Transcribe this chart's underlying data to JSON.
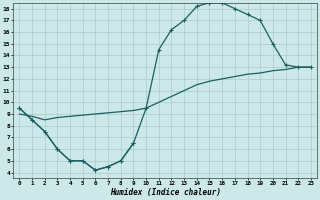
{
  "bg_color": "#cce8e8",
  "grid_color": "#aacccc",
  "line_color": "#1a6060",
  "xlabel": "Humidex (Indice chaleur)",
  "xlim": [
    -0.5,
    23.5
  ],
  "ylim": [
    3.5,
    18.5
  ],
  "xticks": [
    0,
    1,
    2,
    3,
    4,
    5,
    6,
    7,
    8,
    9,
    10,
    11,
    12,
    13,
    14,
    15,
    16,
    17,
    18,
    19,
    20,
    21,
    22,
    23
  ],
  "yticks": [
    4,
    5,
    6,
    7,
    8,
    9,
    10,
    11,
    12,
    13,
    14,
    15,
    16,
    17,
    18
  ],
  "curve_arch_x": [
    0,
    1,
    2,
    3,
    4,
    5,
    6,
    7,
    8,
    9,
    10,
    11,
    12,
    13,
    14,
    15,
    16,
    17,
    18,
    19,
    20,
    21,
    22,
    23
  ],
  "curve_arch_y": [
    9.5,
    8.5,
    7.5,
    6.0,
    5.0,
    5.0,
    4.2,
    4.5,
    5.0,
    6.5,
    9.5,
    14.5,
    16.2,
    17.0,
    18.2,
    18.5,
    18.5,
    18.0,
    17.5,
    17.0,
    15.0,
    13.2,
    13.0,
    13.0
  ],
  "curve_diag_x": [
    0,
    1,
    2,
    3,
    4,
    5,
    6,
    7,
    8,
    9,
    10,
    11,
    12,
    13,
    14,
    15,
    16,
    17,
    18,
    19,
    20,
    21,
    22,
    23
  ],
  "curve_diag_y": [
    9.0,
    8.8,
    8.5,
    8.7,
    8.8,
    8.9,
    9.0,
    9.1,
    9.2,
    9.3,
    9.5,
    10.0,
    10.5,
    11.0,
    11.5,
    11.8,
    12.0,
    12.2,
    12.4,
    12.5,
    12.7,
    12.8,
    13.0,
    13.0
  ],
  "curve_low_x": [
    0,
    1,
    2,
    3,
    4,
    5,
    6,
    7,
    8,
    9
  ],
  "curve_low_y": [
    9.5,
    8.5,
    7.5,
    6.0,
    5.0,
    5.0,
    4.2,
    4.5,
    5.0,
    6.5
  ]
}
